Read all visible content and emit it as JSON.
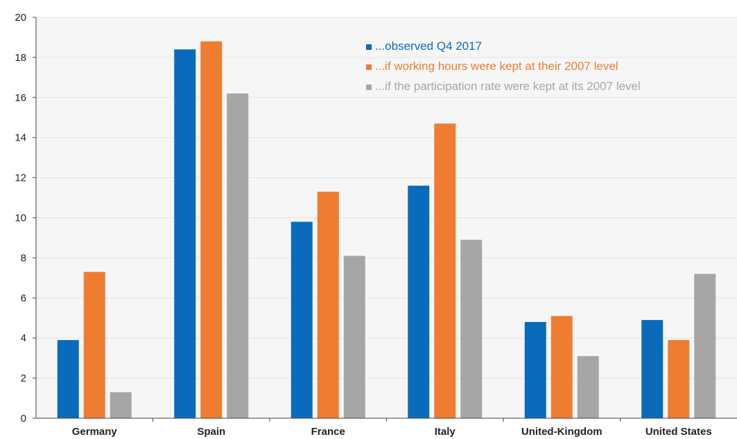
{
  "chart_data": {
    "type": "bar",
    "title": "",
    "xlabel": "",
    "ylabel": "",
    "ylim": [
      0,
      20
    ],
    "yticks": [
      0,
      2,
      4,
      6,
      8,
      10,
      12,
      14,
      16,
      18,
      20
    ],
    "grid": true,
    "legend_position": "top-right",
    "categories": [
      "Germany",
      "Spain",
      "France",
      "Italy",
      "United-Kingdom",
      "United States"
    ],
    "series": [
      {
        "name": "...observed Q4 2017",
        "color": "#0a6bbd",
        "values": [
          3.9,
          18.4,
          9.8,
          11.6,
          4.8,
          4.9
        ]
      },
      {
        "name": "...if working hours were kept at their 2007 level",
        "color": "#ee7d31",
        "values": [
          7.3,
          18.8,
          11.3,
          14.7,
          5.1,
          3.9
        ]
      },
      {
        "name": "...if the participation rate were kept at its 2007 level",
        "color": "#a6a6a6",
        "values": [
          1.3,
          16.2,
          8.1,
          8.9,
          3.1,
          7.2
        ]
      }
    ]
  }
}
